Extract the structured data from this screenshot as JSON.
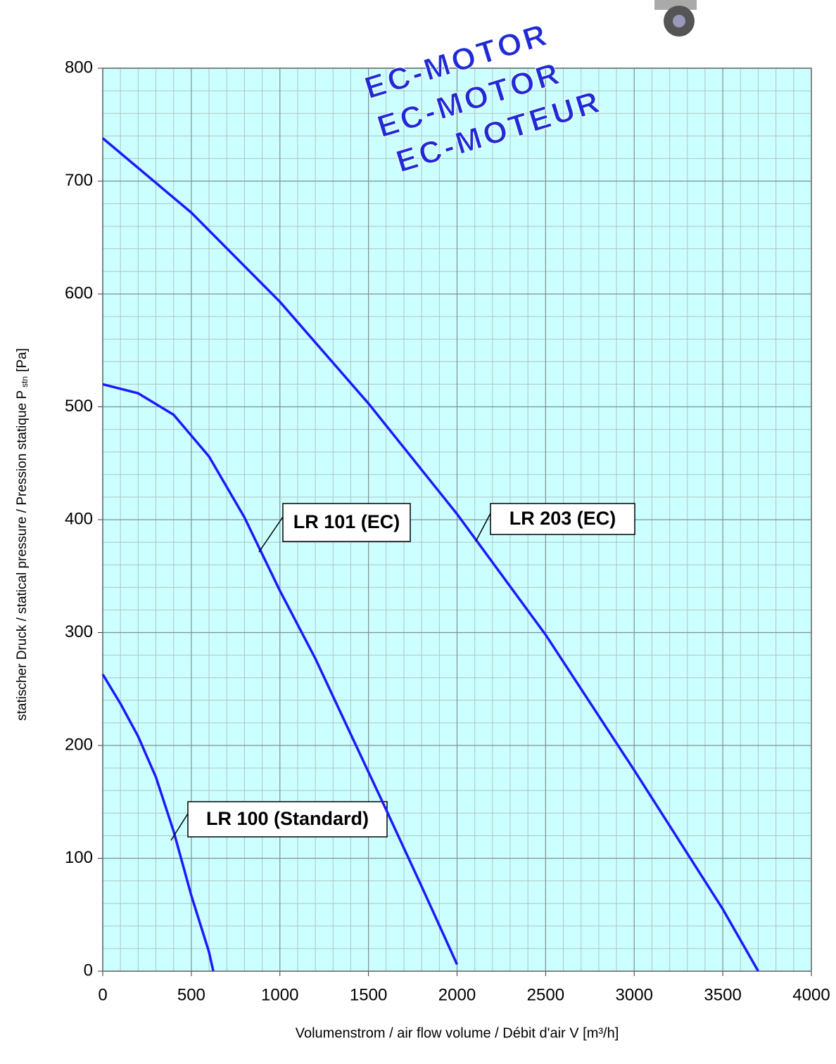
{
  "chart_data": {
    "type": "line",
    "x_label": "Volumenstrom / air flow volume / Débit d'air V [m³/h]",
    "y_label": "statischer Druck / statical pressure / Pression statique P",
    "y_label_sub": "stn",
    "y_label_unit": "[Pa]",
    "annotations": [
      "EC-MOTOR",
      "EC-MOTOR",
      "EC-MOTEUR"
    ],
    "xlim": [
      0,
      4000
    ],
    "ylim": [
      0,
      800
    ],
    "xticks": [
      0,
      500,
      1000,
      1500,
      2000,
      2500,
      3000,
      3500,
      4000
    ],
    "yticks": [
      0,
      100,
      200,
      300,
      400,
      500,
      600,
      700,
      800
    ],
    "grid": true,
    "series": [
      {
        "name": "LR 100 (Standard)",
        "color": "#1a1aff",
        "x": [
          0,
          100,
          200,
          300,
          400,
          500,
          600,
          624
        ],
        "values": [
          263,
          237,
          208,
          172,
          124,
          67,
          17,
          0
        ]
      },
      {
        "name": "LR 101 (EC)",
        "color": "#1a1aff",
        "x": [
          0,
          200,
          400,
          600,
          800,
          1000,
          1200,
          1400,
          1600,
          1800,
          2000
        ],
        "values": [
          520,
          512,
          493,
          456,
          402,
          337,
          277,
          210,
          143,
          75,
          6
        ]
      },
      {
        "name": "LR 203 (EC)",
        "color": "#1a1aff",
        "x": [
          0,
          500,
          1000,
          1500,
          2000,
          2500,
          3000,
          3500,
          3700
        ],
        "values": [
          738,
          672,
          593,
          503,
          405,
          298,
          178,
          55,
          0
        ]
      }
    ]
  }
}
